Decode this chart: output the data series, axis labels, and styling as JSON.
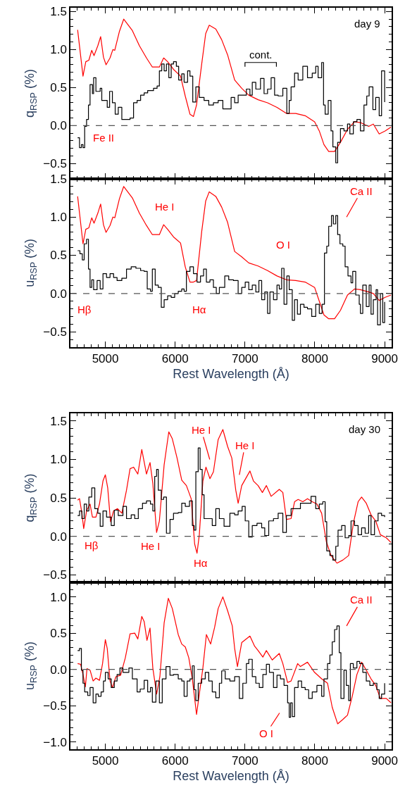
{
  "chart_data": [
    {
      "type": "line",
      "ylabel": "q$_{RSP}$ (%)",
      "xlim": [
        4500,
        9100
      ],
      "ylim": [
        -0.7,
        1.55
      ],
      "tick_labels": "y",
      "xticks": [
        5000,
        6000,
        7000,
        8000,
        9000
      ],
      "yticks": [
        {
          "value": -0.5,
          "label": "−0.5"
        },
        {
          "value": 0,
          "label": "0.0"
        },
        {
          "value": 0.5,
          "label": "0.5"
        },
        {
          "value": 1,
          "label": "1.0"
        },
        {
          "value": 1.5,
          "label": "1.5"
        }
      ],
      "ref_lines": [
        {
          "axis": "y",
          "value": 0,
          "line_style": "dashed",
          "color": "#555555"
        }
      ],
      "annotations": [
        "day 9",
        "cont.",
        "Fe II"
      ],
      "series": [
        {
          "color": "#ff0000",
          "x": [
            4603,
            4680,
            4720,
            4764,
            4805,
            4838,
            4892,
            4933,
            4973,
            5010,
            5067,
            5108,
            5135,
            5202,
            5263,
            5387,
            5488,
            5589,
            5673,
            5774,
            5835,
            5892,
            5976,
            6077,
            6144,
            6212,
            6262,
            6306,
            6380,
            6437,
            6488,
            6582,
            6666,
            6751,
            6852,
            6953,
            7054,
            7188,
            7323,
            7458,
            7593,
            7727,
            7862,
            7997,
            8064,
            8131,
            8199,
            8283,
            8367,
            8468,
            8569,
            8653,
            8771,
            8838,
            8922,
            9007,
            9091
          ],
          "values": [
            1.26,
            0.65,
            0.84,
            0.86,
            0.99,
            0.92,
            1.05,
            1.17,
            0.9,
            0.8,
            0.89,
            1.0,
            0.99,
            1.24,
            1.4,
            1.25,
            1.05,
            0.89,
            0.77,
            0.77,
            0.89,
            0.84,
            0.74,
            0.65,
            0.39,
            0.15,
            0.12,
            0.27,
            0.81,
            1.21,
            1.32,
            1.27,
            1.13,
            0.93,
            0.6,
            0.49,
            0.4,
            0.34,
            0.3,
            0.24,
            0.16,
            0.16,
            0.13,
            0.05,
            -0.07,
            -0.25,
            -0.34,
            -0.34,
            -0.22,
            -0.05,
            0.05,
            0.04,
            -0.01,
            0.02,
            -0.11,
            -0.07,
            -0.02
          ]
        },
        {
          "type": "step",
          "color": "#000000",
          "x": [
            4603,
            4630,
            4657,
            4680,
            4704,
            4731,
            4758,
            4781,
            4815,
            4832,
            4865,
            4926,
            4949,
            5000,
            5027,
            5061,
            5101,
            5141,
            5185,
            5236,
            5286,
            5354,
            5404,
            5455,
            5505,
            5556,
            5606,
            5690,
            5741,
            5774,
            5808,
            5842,
            5875,
            5909,
            5943,
            5976,
            6017,
            6050,
            6094,
            6128,
            6178,
            6212,
            6252,
            6296,
            6346,
            6414,
            6481,
            6548,
            6616,
            6683,
            6751,
            6801,
            6852,
            6902,
            6953,
            7020,
            7071,
            7104,
            7155,
            7222,
            7273,
            7323,
            7374,
            7424,
            7475,
            7542,
            7599,
            7633,
            7660,
            7710,
            7761,
            7828,
            7895,
            7963,
            8013,
            8047,
            8098,
            8125,
            8148,
            8192,
            8232,
            8259,
            8300,
            8327,
            8367,
            8418,
            8468,
            8502,
            8552,
            8603,
            8653,
            8704,
            8744,
            8778,
            8832,
            8872,
            8922,
            8956,
            9000
          ],
          "values": [
            -0.16,
            -0.29,
            -0.25,
            -0.29,
            -0.01,
            0.08,
            0.27,
            0.54,
            0.42,
            0.63,
            0.45,
            0.49,
            0.33,
            0.33,
            0.24,
            0.45,
            0.3,
            0.15,
            0.24,
            0.08,
            0.08,
            0.1,
            0.3,
            0.33,
            0.4,
            0.43,
            0.46,
            0.49,
            0.52,
            0.72,
            0.81,
            0.72,
            0.81,
            0.63,
            0.81,
            0.84,
            0.78,
            0.6,
            0.68,
            0.57,
            0.72,
            0.65,
            0.31,
            0.51,
            0.37,
            0.33,
            0.27,
            0.3,
            0.33,
            0.22,
            0.22,
            0.37,
            0.3,
            0.4,
            0.4,
            0.48,
            0.4,
            0.57,
            0.48,
            0.62,
            0.42,
            0.48,
            0.63,
            0.4,
            0.39,
            0.49,
            0.16,
            0.33,
            0.51,
            0.69,
            0.6,
            0.78,
            0.63,
            0.69,
            0.78,
            0.63,
            0.83,
            0.27,
            0.15,
            0.33,
            -0.07,
            -0.28,
            -0.49,
            -0.22,
            -0.04,
            -0.07,
            0.02,
            -0.11,
            0.05,
            0.08,
            -0.07,
            0.27,
            0.39,
            0.51,
            0.21,
            0.37,
            0.13,
            0.72,
            0.31
          ]
        }
      ]
    },
    {
      "type": "line",
      "ylabel": "u$_{RSP}$ (%)",
      "xlabel": "Rest Wavelength (Å)",
      "xlim": [
        4500,
        9100
      ],
      "ylim": [
        -0.7,
        1.5
      ],
      "xticks": [
        5000,
        6000,
        7000,
        8000,
        9000
      ],
      "yticks": [
        {
          "value": -0.5,
          "label": "−0.5"
        },
        {
          "value": 0,
          "label": "0.0"
        },
        {
          "value": 0.5,
          "label": "0.5"
        },
        {
          "value": 1,
          "label": "1.0"
        },
        {
          "value": 1.5,
          "label": "1.5"
        }
      ],
      "ref_lines": [
        {
          "axis": "y",
          "value": 0,
          "line_style": "dashed",
          "color": "#555555"
        }
      ],
      "annotations": [
        "He I",
        "Hβ",
        "Hα",
        "O I",
        "Ca II"
      ],
      "series": [
        {
          "color": "#ff0000",
          "x": [
            4603,
            4680,
            4720,
            4764,
            4805,
            4838,
            4892,
            4933,
            4973,
            5010,
            5067,
            5108,
            5135,
            5202,
            5263,
            5387,
            5488,
            5589,
            5673,
            5774,
            5835,
            5892,
            5976,
            6077,
            6144,
            6212,
            6262,
            6306,
            6380,
            6437,
            6488,
            6582,
            6666,
            6751,
            6852,
            6953,
            7054,
            7188,
            7323,
            7458,
            7593,
            7727,
            7862,
            7997,
            8064,
            8131,
            8199,
            8283,
            8367,
            8468,
            8569,
            8653,
            8771,
            8838,
            8922,
            9007,
            9091
          ],
          "values": [
            1.27,
            0.65,
            0.84,
            0.86,
            0.99,
            0.92,
            1.05,
            1.17,
            0.9,
            0.8,
            0.89,
            1.0,
            0.99,
            1.24,
            1.4,
            1.25,
            1.05,
            0.89,
            0.77,
            0.77,
            0.9,
            0.84,
            0.74,
            0.66,
            0.35,
            0.15,
            0.15,
            0.17,
            0.81,
            1.21,
            1.33,
            1.27,
            1.13,
            0.93,
            0.55,
            0.48,
            0.4,
            0.36,
            0.3,
            0.23,
            0.18,
            0.17,
            0.15,
            0.08,
            -0.1,
            -0.28,
            -0.33,
            -0.33,
            -0.22,
            -0.02,
            0.06,
            0.05,
            0.02,
            0.0,
            -0.09,
            -0.05,
            -0.02
          ]
        },
        {
          "type": "step",
          "color": "#000000",
          "x": [
            4603,
            4636,
            4670,
            4697,
            4731,
            4758,
            4781,
            4805,
            4832,
            4882,
            4926,
            4966,
            5017,
            5067,
            5118,
            5168,
            5236,
            5303,
            5370,
            5438,
            5505,
            5556,
            5600,
            5647,
            5673,
            5714,
            5758,
            5801,
            5842,
            5892,
            5943,
            5993,
            6044,
            6094,
            6128,
            6161,
            6212,
            6262,
            6313,
            6363,
            6407,
            6447,
            6498,
            6548,
            6589,
            6633,
            6710,
            6767,
            6835,
            6902,
            6953,
            7003,
            7054,
            7104,
            7155,
            7199,
            7239,
            7283,
            7323,
            7357,
            7408,
            7458,
            7491,
            7525,
            7559,
            7599,
            7633,
            7677,
            7710,
            7751,
            7794,
            7845,
            7895,
            7956,
            8013,
            8064,
            8104,
            8138,
            8171,
            8199,
            8239,
            8266,
            8300,
            8327,
            8360,
            8401,
            8434,
            8475,
            8519,
            8543,
            8586,
            8636,
            8653,
            8687,
            8737,
            8778,
            8805,
            8838,
            8878,
            8899,
            8939,
            8973,
            9000
          ],
          "values": [
            0.56,
            0.52,
            0.44,
            0.65,
            0.71,
            0.32,
            0.08,
            0.18,
            0.05,
            0.17,
            0.06,
            0.26,
            0.21,
            0.26,
            0.21,
            0.17,
            0.2,
            0.32,
            0.35,
            0.33,
            0.3,
            0.29,
            0.06,
            0.03,
            0.32,
            0.11,
            0.08,
            -0.18,
            -0.08,
            -0.03,
            -0.05,
            0.0,
            0.03,
            0.06,
            0.03,
            0.29,
            0.35,
            0.26,
            0.15,
            0.23,
            0.32,
            0.15,
            0.18,
            0.08,
            0.0,
            0.08,
            0.23,
            0.18,
            0.17,
            0.0,
            0.08,
            0.15,
            0.05,
            0.11,
            0.02,
            0.17,
            -0.08,
            0.02,
            -0.26,
            0.02,
            -0.08,
            0.11,
            0.06,
            0.33,
            -0.14,
            0.23,
            0.05,
            -0.35,
            -0.08,
            -0.27,
            -0.14,
            -0.18,
            -0.2,
            -0.3,
            -0.14,
            -0.26,
            -0.14,
            0.53,
            0.62,
            0.88,
            1.02,
            0.91,
            1.02,
            0.77,
            0.65,
            0.62,
            0.35,
            0.23,
            0.14,
            0.29,
            -0.02,
            -0.14,
            -0.26,
            0.11,
            -0.17,
            0.11,
            -0.27,
            -0.08,
            0.05,
            -0.41,
            0.0,
            -0.38,
            -0.11
          ]
        }
      ]
    },
    {
      "type": "line",
      "ylabel": "q$_{RSP}$ (%)",
      "xlim": [
        4500,
        9100
      ],
      "ylim": [
        -0.6,
        1.6
      ],
      "tick_labels": "y",
      "xticks": [
        5000,
        6000,
        7000,
        8000,
        9000
      ],
      "yticks": [
        {
          "value": -0.5,
          "label": "−0.5"
        },
        {
          "value": 0,
          "label": "0.0"
        },
        {
          "value": 0.5,
          "label": "0.5"
        },
        {
          "value": 1,
          "label": "1.0"
        },
        {
          "value": 1.5,
          "label": "1.5"
        }
      ],
      "ref_lines": [
        {
          "axis": "y",
          "value": 0,
          "line_style": "dashed",
          "color": "#555555"
        }
      ],
      "annotations": [
        "day 30",
        "He I",
        "He I",
        "Hβ",
        "He I",
        "Hα"
      ],
      "series": [
        {
          "color": "#ff0000",
          "x": [
            4603,
            4630,
            4664,
            4690,
            4731,
            4781,
            4815,
            4865,
            4916,
            4966,
            5000,
            5034,
            5074,
            5118,
            5175,
            5236,
            5303,
            5354,
            5404,
            5465,
            5522,
            5589,
            5640,
            5680,
            5734,
            5774,
            5842,
            5909,
            5959,
            6027,
            6094,
            6161,
            6229,
            6279,
            6313,
            6346,
            6397,
            6441,
            6498,
            6548,
            6616,
            6683,
            6751,
            6811,
            6868,
            6902,
            6953,
            7071,
            7121,
            7188,
            7249,
            7306,
            7374,
            7491,
            7542,
            7593,
            7660,
            7710,
            7761,
            7828,
            7895,
            7963,
            8030,
            8098,
            8165,
            8232,
            8317,
            8401,
            8485,
            8552,
            8620,
            8670,
            8737,
            8805,
            8872,
            8939,
            9024,
            9091
          ],
          "values": [
            0.47,
            0.49,
            0.3,
            0.1,
            0.33,
            0.42,
            0.25,
            0.25,
            0.42,
            0.72,
            0.8,
            0.63,
            0.19,
            0.33,
            0.36,
            0.3,
            0.6,
            0.88,
            0.9,
            0.81,
            1.13,
            0.81,
            0.96,
            0.69,
            0.05,
            0.2,
            0.93,
            1.36,
            1.27,
            1.02,
            0.73,
            0.66,
            0.49,
            -0.1,
            -0.22,
            0.02,
            0.72,
            0.9,
            0.75,
            0.84,
            1.26,
            1.39,
            1.17,
            1.02,
            0.6,
            0.43,
            0.66,
            0.85,
            0.72,
            0.66,
            0.57,
            0.66,
            0.52,
            0.61,
            0.57,
            0.22,
            0.23,
            0.45,
            0.48,
            0.45,
            0.49,
            0.45,
            0.42,
            0.3,
            -0.07,
            -0.25,
            -0.35,
            -0.31,
            -0.25,
            0.17,
            0.45,
            0.51,
            0.43,
            0.28,
            0.2,
            0.02,
            -0.02,
            -0.08
          ]
        },
        {
          "type": "step",
          "color": "#000000",
          "x": [
            4603,
            4630,
            4664,
            4697,
            4731,
            4764,
            4805,
            4849,
            4892,
            4926,
            4966,
            5017,
            5084,
            5128,
            5185,
            5252,
            5303,
            5370,
            5421,
            5472,
            5532,
            5589,
            5646,
            5680,
            5707,
            5734,
            5758,
            5801,
            5835,
            5875,
            5926,
            5976,
            6044,
            6094,
            6145,
            6205,
            6246,
            6272,
            6296,
            6330,
            6357,
            6387,
            6414,
            6481,
            6531,
            6582,
            6633,
            6700,
            6784,
            6852,
            6902,
            6959,
            7003,
            7054,
            7104,
            7172,
            7239,
            7283,
            7340,
            7408,
            7475,
            7542,
            7593,
            7660,
            7727,
            7794,
            7862,
            7946,
            8013,
            8064,
            8114,
            8148,
            8171,
            8216,
            8259,
            8300,
            8333,
            8384,
            8434,
            8485,
            8519,
            8569,
            8620,
            8670,
            8721,
            8771,
            8805,
            8855,
            8906,
            8956,
            9000
          ],
          "values": [
            0.27,
            0.33,
            0.23,
            0.42,
            0.33,
            0.51,
            0.63,
            0.36,
            0.3,
            0.13,
            0.33,
            0.25,
            0.14,
            0.34,
            0.27,
            0.39,
            0.23,
            0.28,
            0.23,
            0.36,
            0.43,
            0.46,
            0.42,
            0.33,
            0.78,
            0.87,
            0.6,
            0.48,
            0.51,
            0.04,
            0.22,
            0.3,
            0.31,
            0.43,
            0.39,
            0.46,
            0.14,
            0.08,
            0.84,
            1.15,
            0.87,
            0.54,
            0.23,
            0.23,
            0.14,
            0.36,
            0.23,
            0.13,
            0.3,
            0.28,
            0.33,
            0.39,
            0.2,
            -0.01,
            0.14,
            0.17,
            0.11,
            0.01,
            0.2,
            0.23,
            0.3,
            0.05,
            0.27,
            0.36,
            0.36,
            0.43,
            0.43,
            0.52,
            0.36,
            0.42,
            0.45,
            0.19,
            -0.19,
            -0.25,
            -0.31,
            -0.13,
            0.08,
            0.14,
            -0.02,
            0.01,
            0.2,
            0.14,
            0.02,
            0.11,
            0.04,
            0.27,
            0.02,
            0.2,
            0.3,
            0.27,
            0.25
          ]
        }
      ]
    },
    {
      "type": "line",
      "ylabel": "u$_{RSP}$ (%)",
      "xlabel": "Rest Wavelength (Å)",
      "xlim": [
        4500,
        9100
      ],
      "ylim": [
        -1.1,
        1.2
      ],
      "xticks": [
        5000,
        6000,
        7000,
        8000,
        9000
      ],
      "yticks": [
        {
          "value": -1,
          "label": "−1.0"
        },
        {
          "value": -0.5,
          "label": "−0.5"
        },
        {
          "value": 0,
          "label": "0.0"
        },
        {
          "value": 0.5,
          "label": "0.5"
        },
        {
          "value": 1,
          "label": "1.0"
        }
      ],
      "ref_lines": [
        {
          "axis": "y",
          "value": 0,
          "line_style": "dashed",
          "color": "#555555"
        }
      ],
      "annotations": [
        "Ca II",
        "O I"
      ],
      "series": [
        {
          "color": "#ff0000",
          "x": [
            4603,
            4646,
            4680,
            4714,
            4737,
            4781,
            4825,
            4865,
            4916,
            4960,
            5000,
            5027,
            5067,
            5101,
            5151,
            5219,
            5286,
            5354,
            5421,
            5465,
            5522,
            5556,
            5596,
            5640,
            5680,
            5734,
            5781,
            5842,
            5902,
            5959,
            6044,
            6094,
            6145,
            6195,
            6246,
            6306,
            6346,
            6397,
            6447,
            6508,
            6565,
            6616,
            6683,
            6751,
            6818,
            6852,
            6892,
            6953,
            7071,
            7138,
            7188,
            7256,
            7306,
            7390,
            7491,
            7542,
            7610,
            7660,
            7754,
            7794,
            7895,
            7996,
            8098,
            8182,
            8249,
            8327,
            8401,
            8468,
            8536,
            8603,
            8670,
            8737,
            8805,
            8872,
            8939,
            9024,
            9091
          ],
          "values": [
            0.08,
            0.07,
            -0.07,
            -0.24,
            0.01,
            -0.01,
            -0.16,
            -0.12,
            -0.15,
            0.08,
            0.41,
            0.29,
            -0.16,
            -0.25,
            -0.1,
            -0.08,
            0.16,
            0.49,
            0.5,
            0.42,
            0.73,
            0.66,
            0.4,
            0.57,
            0.02,
            -0.34,
            -0.1,
            0.64,
            0.98,
            0.84,
            0.48,
            0.35,
            0.31,
            0.16,
            -0.13,
            -0.62,
            -0.34,
            0.02,
            0.48,
            0.35,
            0.58,
            0.84,
            1.0,
            0.81,
            0.6,
            0.29,
            0.04,
            0.37,
            0.46,
            0.32,
            0.26,
            0.17,
            0.26,
            0.13,
            0.22,
            0.08,
            -0.18,
            -0.16,
            0.08,
            0.04,
            0.1,
            -0.04,
            -0.13,
            -0.19,
            -0.52,
            -0.75,
            -0.69,
            -0.63,
            -0.37,
            -0.07,
            0.1,
            -0.01,
            -0.13,
            -0.22,
            -0.4,
            -0.4,
            -0.46
          ]
        },
        {
          "type": "step",
          "color": "#000000",
          "x": [
            4603,
            4630,
            4657,
            4680,
            4704,
            4748,
            4781,
            4825,
            4865,
            4899,
            4939,
            4973,
            5000,
            5040,
            5084,
            5128,
            5168,
            5209,
            5252,
            5303,
            5337,
            5387,
            5455,
            5499,
            5556,
            5606,
            5646,
            5673,
            5724,
            5774,
            5815,
            5869,
            5926,
            5976,
            6044,
            6094,
            6128,
            6172,
            6212,
            6246,
            6272,
            6296,
            6330,
            6380,
            6431,
            6481,
            6531,
            6582,
            6633,
            6666,
            6717,
            6784,
            6852,
            6919,
            6969,
            7020,
            7054,
            7104,
            7155,
            7205,
            7256,
            7306,
            7350,
            7408,
            7458,
            7508,
            7559,
            7610,
            7633,
            7653,
            7677,
            7710,
            7761,
            7811,
            7862,
            7912,
            7963,
            8030,
            8098,
            8131,
            8182,
            8216,
            8249,
            8283,
            8317,
            8350,
            8374,
            8418,
            8451,
            8485,
            8509,
            8552,
            8603,
            8643,
            8687,
            8737,
            8788,
            8838,
            8889,
            8922,
            8956,
            9000
          ],
          "values": [
            0.26,
            0.29,
            -0.01,
            -0.19,
            -0.31,
            -0.36,
            -0.25,
            -0.46,
            -0.34,
            -0.37,
            -0.31,
            -0.16,
            -0.04,
            -0.13,
            -0.25,
            -0.16,
            -0.07,
            0.02,
            -0.04,
            -0.04,
            0.02,
            -0.13,
            -0.31,
            -0.27,
            -0.15,
            -0.31,
            -0.25,
            -0.45,
            -0.16,
            -0.46,
            -0.13,
            0.04,
            -0.08,
            -0.07,
            -0.13,
            -0.16,
            -0.37,
            -0.16,
            -0.13,
            0.05,
            -0.28,
            -0.43,
            -0.19,
            -0.13,
            -0.04,
            -0.16,
            -0.31,
            -0.39,
            -0.19,
            -0.02,
            -0.13,
            -0.16,
            -0.1,
            -0.4,
            -0.19,
            0.08,
            0.14,
            -0.1,
            -0.19,
            -0.25,
            -0.07,
            0.07,
            -0.04,
            -0.25,
            -0.08,
            -0.13,
            -0.22,
            -0.46,
            -0.66,
            -0.46,
            -0.65,
            -0.25,
            -0.16,
            -0.25,
            -0.28,
            -0.4,
            -0.31,
            -0.22,
            -0.37,
            -0.13,
            0.08,
            0.2,
            0.38,
            0.55,
            0.6,
            0.23,
            -0.4,
            -0.01,
            -0.22,
            -0.43,
            0.08,
            0.02,
            0.11,
            0.08,
            -0.04,
            -0.16,
            -0.22,
            -0.19,
            -0.28,
            -0.4,
            -0.34,
            -0.19
          ]
        }
      ]
    }
  ]
}
